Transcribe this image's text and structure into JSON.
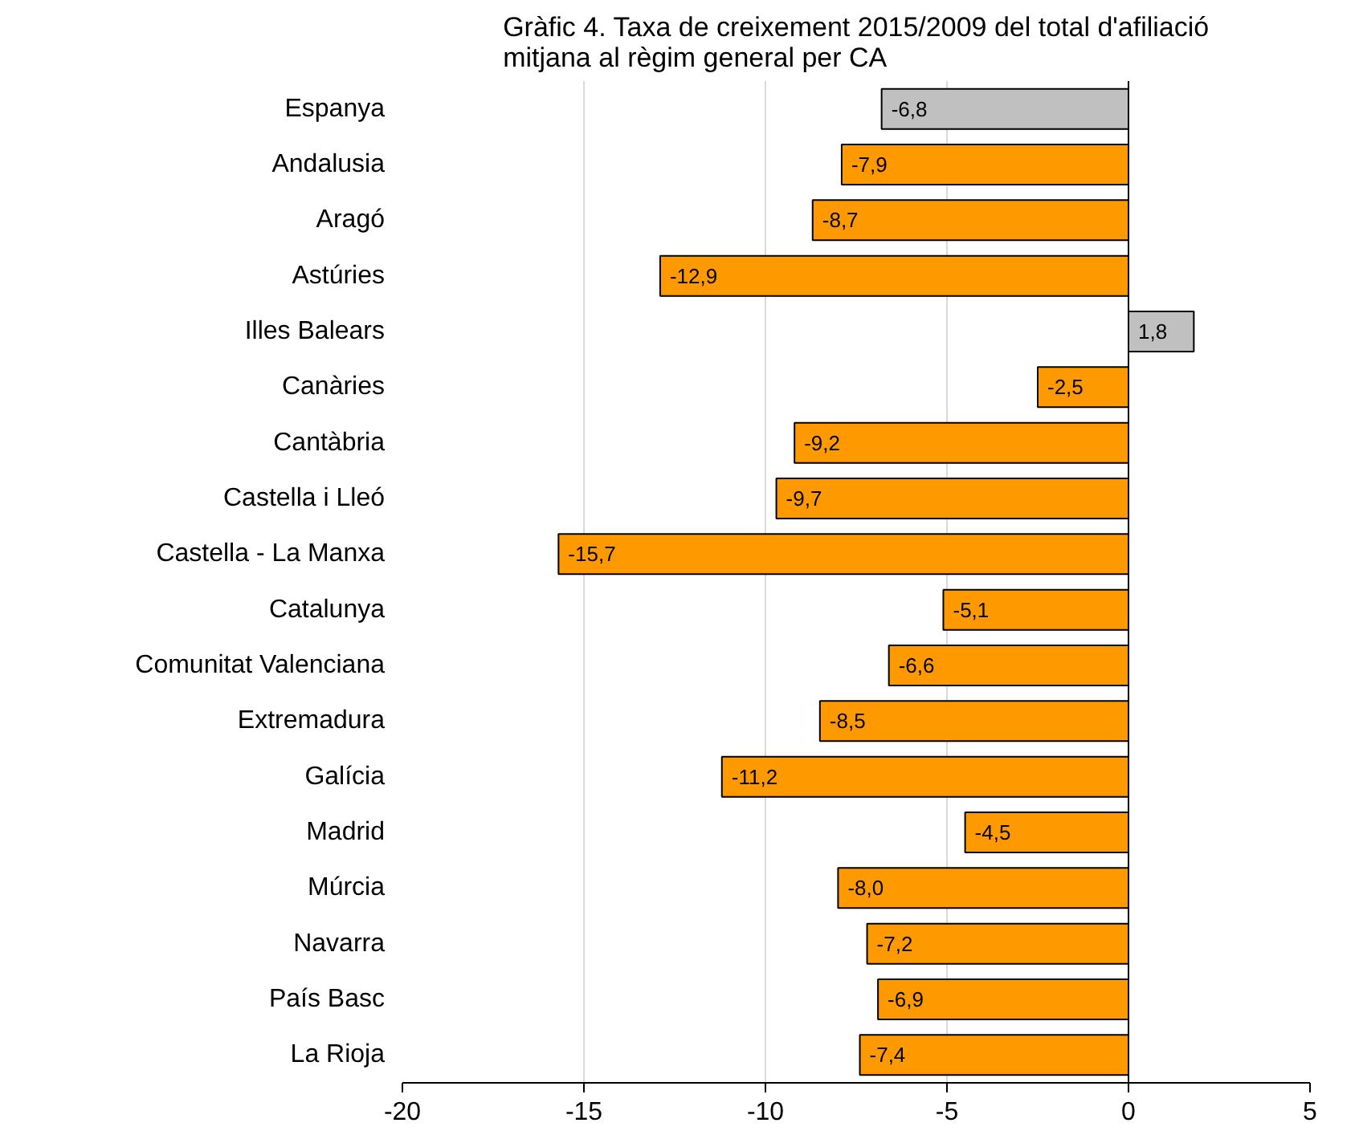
{
  "chart_data": {
    "type": "bar",
    "orientation": "horizontal",
    "title": "Gràfic 4. Taxa de creixement 2015/2009 del total d'afiliació\nmitjana al règim general per CA",
    "categories": [
      "Espanya",
      "Andalusia",
      "Aragó",
      "Astúries",
      "Illes Balears",
      "Canàries",
      "Cantàbria",
      "Castella i Lleó",
      "Castella - La Manxa",
      "Catalunya",
      "Comunitat Valenciana",
      "Extremadura",
      "Galícia",
      "Madrid",
      "Múrcia",
      "Navarra",
      "País Basc",
      "La Rioja"
    ],
    "values": [
      -6.8,
      -7.9,
      -8.7,
      -12.9,
      1.8,
      -2.5,
      -9.2,
      -9.7,
      -15.7,
      -5.1,
      -6.6,
      -8.5,
      -11.2,
      -4.5,
      -8.0,
      -7.2,
      -6.9,
      -7.4
    ],
    "value_labels": [
      "-6,8",
      "-7,9",
      "-8,7",
      "-12,9",
      "1,8",
      "-2,5",
      "-9,2",
      "-9,7",
      "-15,7",
      "-5,1",
      "-6,6",
      "-8,5",
      "-11,2",
      "-4,5",
      "-8,0",
      "-7,2",
      "-6,9",
      "-7,4"
    ],
    "colors": [
      "#c0c0c0",
      "#ff9900",
      "#ff9900",
      "#ff9900",
      "#c0c0c0",
      "#ff9900",
      "#ff9900",
      "#ff9900",
      "#ff9900",
      "#ff9900",
      "#ff9900",
      "#ff9900",
      "#ff9900",
      "#ff9900",
      "#ff9900",
      "#ff9900",
      "#ff9900",
      "#ff9900"
    ],
    "xlim": [
      -20,
      5
    ],
    "xticks": [
      -20,
      -15,
      -10,
      -5,
      0,
      5
    ],
    "grid": "x"
  }
}
